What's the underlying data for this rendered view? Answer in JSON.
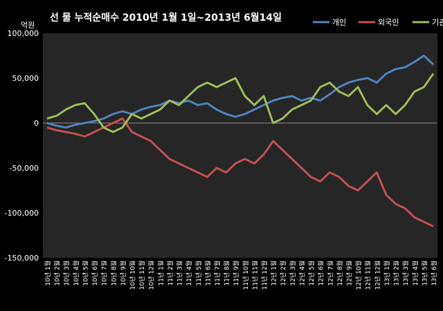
{
  "chart_data": {
    "type": "line",
    "title": "선 물 누적순매수 2010년 1월 1일~2013년 6월14일",
    "ylabel": "억원",
    "ylim": [
      -150000,
      100000
    ],
    "yticks": [
      100000,
      50000,
      0,
      -50000,
      -100000,
      -150000
    ],
    "ytick_labels": [
      "100,000",
      "50,000",
      "0",
      "-50,000",
      "-100,000",
      "-150,000"
    ],
    "grid": false,
    "legend_position": "top-right",
    "xtick_labels": [
      "10년 1월",
      "10년 2월",
      "10년 3월",
      "10년 4월",
      "10년 5월",
      "10년 6월",
      "10년 7월",
      "10년 8월",
      "10년 9월",
      "10년 10월",
      "10년 11월",
      "10년 12월",
      "11년 1월",
      "11년 2월",
      "11년 3월",
      "11년 4월",
      "11년 5월",
      "11년 6월",
      "11년 7월",
      "11년 8월",
      "11년 9월",
      "11년 10월",
      "11년 11월",
      "11년 12월",
      "12년 1월",
      "12년 2월",
      "12년 3월",
      "12년 4월",
      "12년 5월",
      "12년 6월",
      "12년 7월",
      "12년 8월",
      "12년 9월",
      "12년 10월",
      "12년 11월",
      "12년 12월",
      "13년 1월",
      "13년 2월",
      "13년 3월",
      "13년 4월",
      "13년 5월",
      "13년 6월"
    ],
    "series": [
      {
        "name": "개인",
        "color": "#4f81bd",
        "values": [
          0,
          -3000,
          -5000,
          -2000,
          0,
          2000,
          5000,
          10000,
          13000,
          10000,
          15000,
          18000,
          20000,
          25000,
          22000,
          25000,
          20000,
          22000,
          15000,
          10000,
          7000,
          10000,
          15000,
          20000,
          25000,
          28000,
          30000,
          25000,
          28000,
          25000,
          32000,
          40000,
          45000,
          48000,
          50000,
          45000,
          55000,
          60000,
          62000,
          68000,
          75000,
          65000
        ]
      },
      {
        "name": "외국인",
        "color": "#c0504d",
        "values": [
          -5000,
          -8000,
          -10000,
          -12000,
          -15000,
          -10000,
          -5000,
          0,
          5000,
          -10000,
          -15000,
          -20000,
          -30000,
          -40000,
          -45000,
          -50000,
          -55000,
          -60000,
          -50000,
          -55000,
          -45000,
          -40000,
          -45000,
          -35000,
          -20000,
          -30000,
          -40000,
          -50000,
          -60000,
          -65000,
          -55000,
          -60000,
          -70000,
          -75000,
          -65000,
          -55000,
          -80000,
          -90000,
          -95000,
          -105000,
          -110000,
          -115000
        ]
      },
      {
        "name": "기관",
        "color": "#9bbb59",
        "values": [
          5000,
          8000,
          15000,
          20000,
          22000,
          10000,
          -5000,
          -10000,
          -5000,
          10000,
          5000,
          10000,
          15000,
          25000,
          20000,
          30000,
          40000,
          45000,
          40000,
          45000,
          50000,
          30000,
          20000,
          30000,
          0,
          5000,
          15000,
          20000,
          25000,
          40000,
          45000,
          35000,
          30000,
          40000,
          20000,
          10000,
          20000,
          10000,
          20000,
          35000,
          40000,
          55000
        ]
      }
    ]
  }
}
